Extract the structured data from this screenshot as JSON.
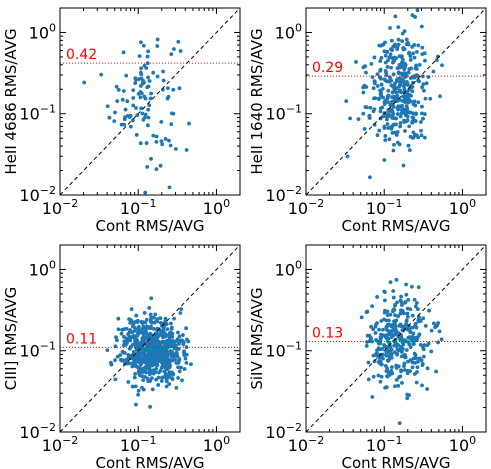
{
  "colors": {
    "points": "#1f77b4",
    "median_line": "#ff0000",
    "diagonal": "#000000",
    "annotation": "#ff0000"
  },
  "chart_data": [
    {
      "type": "scatter",
      "xlabel": "Cont RMS/AVG",
      "ylabel": "HeII 4686 RMS/AVG",
      "xscale": "log",
      "yscale": "log",
      "xlim": [
        0.01,
        2
      ],
      "ylim": [
        0.01,
        2
      ],
      "xticks": [
        {
          "v": 0.01,
          "label": "10",
          "exp": "−2"
        },
        {
          "v": 0.1,
          "label": "10",
          "exp": "−1"
        },
        {
          "v": 1,
          "label": "10",
          "exp": "0"
        }
      ],
      "yticks": [
        {
          "v": 0.01,
          "label": "10",
          "exp": "−2"
        },
        {
          "v": 0.1,
          "label": "10",
          "exp": "−1"
        },
        {
          "v": 1,
          "label": "10",
          "exp": "0"
        }
      ],
      "hline": 0.42,
      "hline_label": "0.42",
      "diagonal": true,
      "n_points": 110,
      "x_median": 0.12,
      "x_spread": 0.22,
      "y_median": 0.17,
      "y_spread": 0.42
    },
    {
      "type": "scatter",
      "xlabel": "Cont RMS/AVG",
      "ylabel": "HeII 1640 RMS/AVG",
      "xscale": "log",
      "yscale": "log",
      "xlim": [
        0.01,
        2
      ],
      "ylim": [
        0.01,
        2
      ],
      "xticks": [
        {
          "v": 0.01,
          "label": "10",
          "exp": "−2"
        },
        {
          "v": 0.1,
          "label": "10",
          "exp": "−1"
        },
        {
          "v": 1,
          "label": "10",
          "exp": "0"
        }
      ],
      "yticks": [
        {
          "v": 0.01,
          "label": "10",
          "exp": "−2"
        },
        {
          "v": 0.1,
          "label": "10",
          "exp": "−1"
        },
        {
          "v": 1,
          "label": "10",
          "exp": "0"
        }
      ],
      "hline": 0.29,
      "hline_label": "0.29",
      "diagonal": true,
      "n_points": 380,
      "x_median": 0.15,
      "x_spread": 0.2,
      "y_median": 0.2,
      "y_spread": 0.36
    },
    {
      "type": "scatter",
      "xlabel": "Cont RMS/AVG",
      "ylabel": "CIII] RMS/AVG",
      "xscale": "log",
      "yscale": "log",
      "xlim": [
        0.01,
        2
      ],
      "ylim": [
        0.01,
        2
      ],
      "xticks": [
        {
          "v": 0.01,
          "label": "10",
          "exp": "−2"
        },
        {
          "v": 0.1,
          "label": "10",
          "exp": "−1"
        },
        {
          "v": 1,
          "label": "10",
          "exp": "0"
        }
      ],
      "yticks": [
        {
          "v": 0.01,
          "label": "10",
          "exp": "−2"
        },
        {
          "v": 0.1,
          "label": "10",
          "exp": "−1"
        },
        {
          "v": 1,
          "label": "10",
          "exp": "0"
        }
      ],
      "hline": 0.11,
      "hline_label": "0.11",
      "diagonal": true,
      "n_points": 650,
      "x_median": 0.15,
      "x_spread": 0.2,
      "y_median": 0.1,
      "y_spread": 0.2
    },
    {
      "type": "scatter",
      "xlabel": "Cont RMS/AVG",
      "ylabel": "SiIV RMS/AVG",
      "xscale": "log",
      "yscale": "log",
      "xlim": [
        0.01,
        2
      ],
      "ylim": [
        0.01,
        2
      ],
      "xticks": [
        {
          "v": 0.01,
          "label": "10",
          "exp": "−2"
        },
        {
          "v": 0.1,
          "label": "10",
          "exp": "−1"
        },
        {
          "v": 1,
          "label": "10",
          "exp": "0"
        }
      ],
      "yticks": [
        {
          "v": 0.01,
          "label": "10",
          "exp": "−2"
        },
        {
          "v": 0.1,
          "label": "10",
          "exp": "−1"
        },
        {
          "v": 1,
          "label": "10",
          "exp": "0"
        }
      ],
      "hline": 0.13,
      "hline_label": "0.13",
      "diagonal": true,
      "n_points": 330,
      "x_median": 0.15,
      "x_spread": 0.2,
      "y_median": 0.13,
      "y_spread": 0.3
    }
  ]
}
